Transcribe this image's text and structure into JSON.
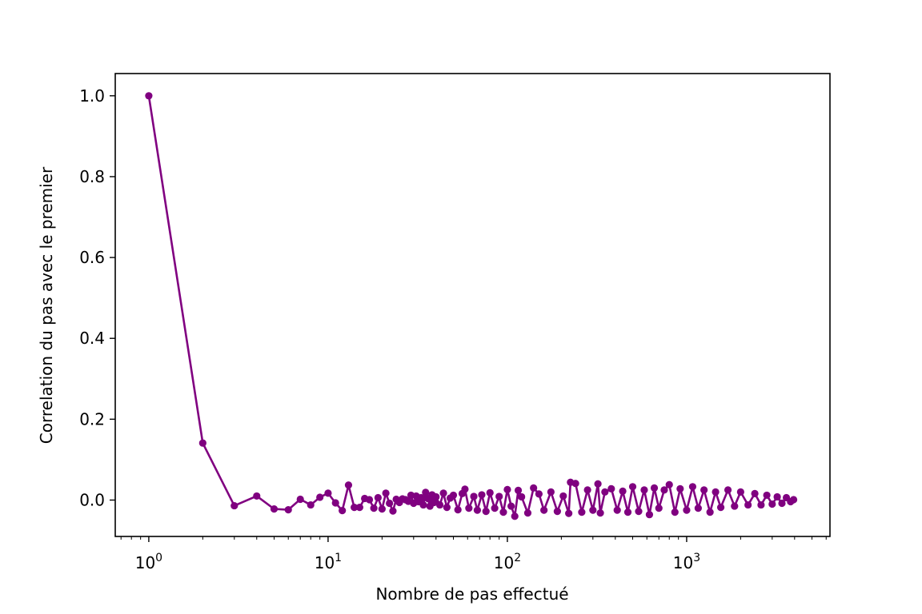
{
  "chart_data": {
    "type": "line",
    "title": "",
    "xlabel": "Nombre de pas effectué",
    "ylabel": "Correlation du pas avec le premier",
    "xscale": "log",
    "xlim": [
      0.65,
      6300
    ],
    "ylim": [
      -0.09,
      1.055
    ],
    "grid": false,
    "legend": "none",
    "color": "#800080",
    "marker": "circle",
    "x_ticks": [
      {
        "value": 1,
        "base": "10",
        "exp": "0"
      },
      {
        "value": 10,
        "base": "10",
        "exp": "1"
      },
      {
        "value": 100,
        "base": "10",
        "exp": "2"
      },
      {
        "value": 1000,
        "base": "10",
        "exp": "3"
      }
    ],
    "y_ticks": [
      {
        "value": 0.0,
        "label": "0.0"
      },
      {
        "value": 0.2,
        "label": "0.2"
      },
      {
        "value": 0.4,
        "label": "0.4"
      },
      {
        "value": 0.6,
        "label": "0.6"
      },
      {
        "value": 0.8,
        "label": "0.8"
      },
      {
        "value": 1.0,
        "label": "1.0"
      }
    ],
    "series": [
      {
        "x": [
          1,
          2,
          3,
          4,
          5,
          6,
          7,
          8,
          9,
          10,
          11,
          12,
          13,
          14,
          15,
          16,
          17,
          18,
          19,
          20,
          21,
          22,
          23,
          24,
          25,
          26,
          27,
          28,
          29,
          30,
          31,
          32,
          33,
          34,
          35,
          36,
          37,
          38,
          39,
          40,
          42,
          44,
          46,
          48,
          50,
          53,
          56,
          58,
          61,
          65,
          68,
          72,
          76,
          80,
          85,
          90,
          95,
          100,
          105,
          110,
          115,
          120,
          130,
          140,
          150,
          160,
          175,
          190,
          205,
          220,
          225,
          240,
          260,
          280,
          300,
          320,
          330,
          350,
          380,
          410,
          440,
          470,
          500,
          540,
          580,
          620,
          660,
          700,
          750,
          800,
          860,
          920,
          1000,
          1080,
          1160,
          1250,
          1350,
          1450,
          1550,
          1700,
          1850,
          2000,
          2200,
          2400,
          2600,
          2800,
          3000,
          3200,
          3400,
          3600,
          3800,
          3950
        ],
        "y": [
          1.0,
          0.141,
          -0.014,
          0.01,
          -0.022,
          -0.024,
          0.002,
          -0.012,
          0.007,
          0.017,
          -0.007,
          -0.026,
          0.037,
          -0.018,
          -0.018,
          0.004,
          0.001,
          -0.02,
          0.006,
          -0.022,
          0.017,
          -0.008,
          -0.027,
          0.002,
          -0.006,
          0.003,
          0.001,
          -0.003,
          0.012,
          -0.008,
          0.01,
          -0.004,
          0.006,
          -0.012,
          0.019,
          0.004,
          -0.015,
          0.013,
          -0.006,
          0.008,
          -0.012,
          0.017,
          -0.018,
          0.005,
          0.012,
          -0.024,
          0.016,
          0.027,
          -0.02,
          0.009,
          -0.025,
          0.013,
          -0.028,
          0.018,
          -0.02,
          0.009,
          -0.03,
          0.026,
          -0.015,
          -0.04,
          0.024,
          0.008,
          -0.032,
          0.03,
          0.015,
          -0.025,
          0.02,
          -0.028,
          0.01,
          -0.033,
          0.044,
          0.041,
          -0.03,
          0.025,
          -0.025,
          0.04,
          -0.032,
          0.02,
          0.028,
          -0.025,
          0.022,
          -0.03,
          0.033,
          -0.028,
          0.025,
          -0.036,
          0.03,
          -0.02,
          0.025,
          0.038,
          -0.03,
          0.028,
          -0.025,
          0.033,
          -0.02,
          0.025,
          -0.03,
          0.02,
          -0.018,
          0.025,
          -0.015,
          0.02,
          -0.012,
          0.016,
          -0.012,
          0.012,
          -0.01,
          0.008,
          -0.008,
          0.006,
          -0.004,
          0.001
        ]
      }
    ]
  }
}
